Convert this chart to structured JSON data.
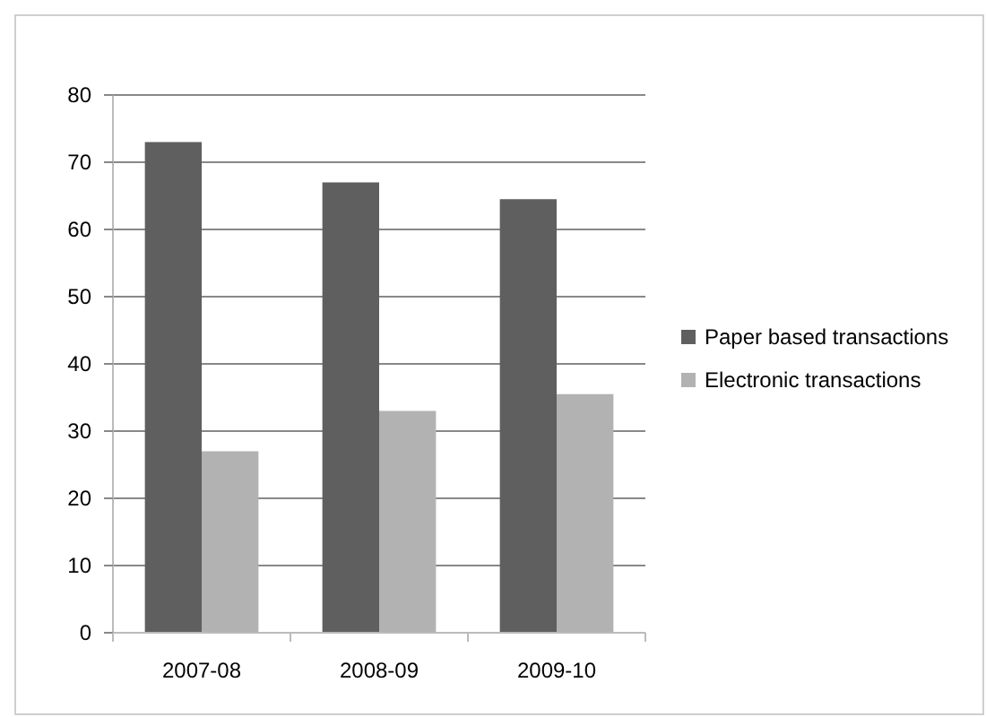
{
  "chart_data": {
    "type": "bar",
    "categories": [
      "2007-08",
      "2008-09",
      "2009-10"
    ],
    "series": [
      {
        "name": "Paper based transactions",
        "color": "#5f5f5f",
        "values": [
          73,
          67,
          64.5
        ]
      },
      {
        "name": "Electronic transactions",
        "color": "#b2b2b2",
        "values": [
          27,
          33,
          35.5
        ]
      }
    ],
    "ylim": [
      0,
      80
    ],
    "yticks": [
      0,
      10,
      20,
      30,
      40,
      50,
      60,
      70,
      80
    ],
    "grid": "y",
    "legend": "right"
  }
}
